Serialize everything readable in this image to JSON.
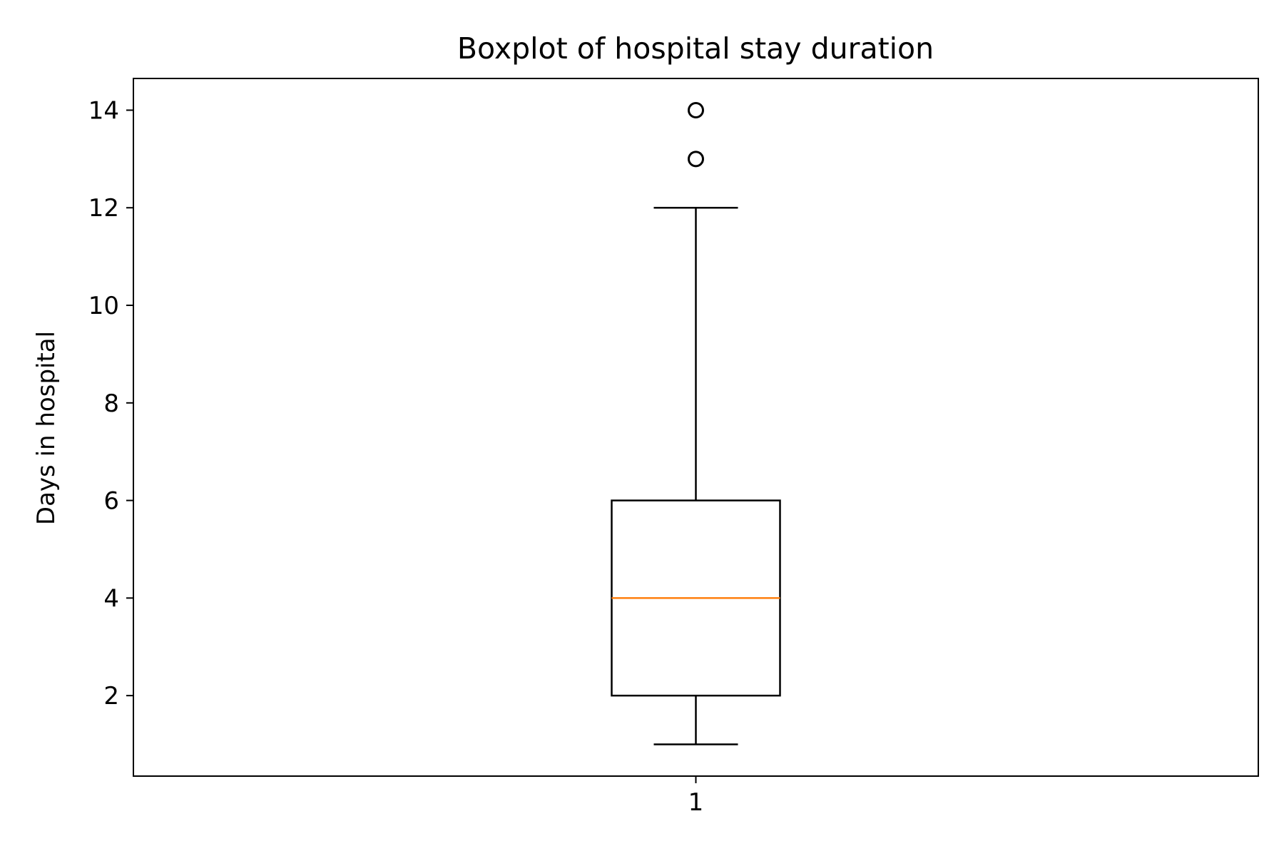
{
  "chart_data": {
    "type": "boxplot",
    "title": "Boxplot of hospital stay duration",
    "xlabel": "",
    "ylabel": "Days in hospital",
    "categories": [
      "1"
    ],
    "x_ticks": [
      "1"
    ],
    "y_ticks": [
      "2",
      "4",
      "6",
      "8",
      "10",
      "12",
      "14"
    ],
    "ylim": [
      0.35,
      14.65
    ],
    "grid": false,
    "boxes": [
      {
        "category": "1",
        "whisker_low": 1,
        "q1": 2,
        "median": 4,
        "q3": 6,
        "whisker_high": 12,
        "outliers": [
          13,
          14
        ]
      }
    ],
    "colors": {
      "box": "#000000",
      "median": "#ff7f0e",
      "outlier": "#000000"
    }
  }
}
